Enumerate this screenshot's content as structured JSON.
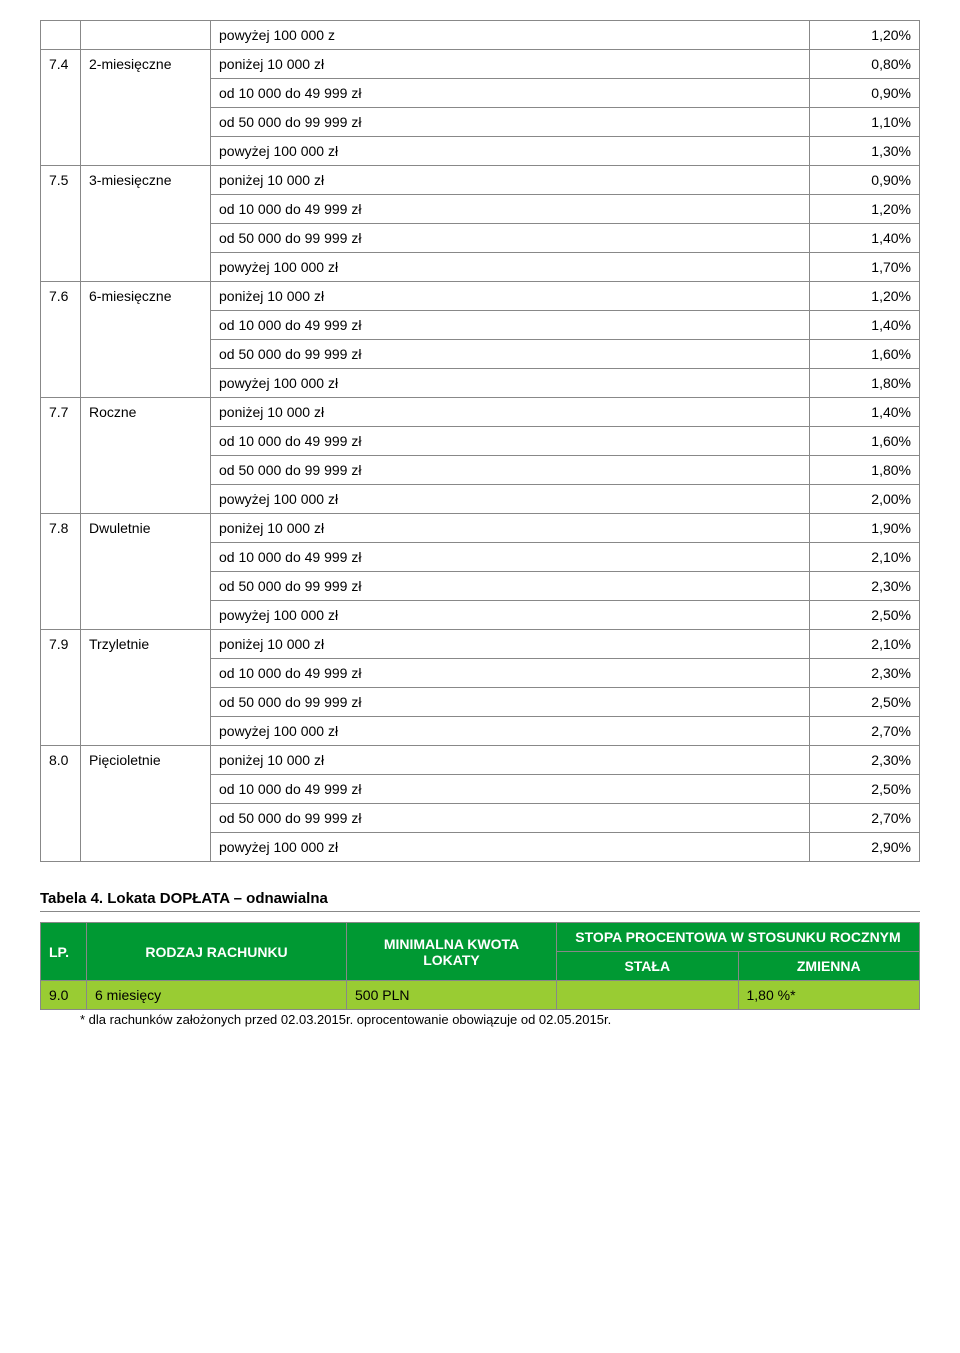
{
  "main_rows": [
    {
      "num": "",
      "label": "",
      "desc": "powyżej 100 000 z",
      "pct": "1,20%"
    },
    {
      "num": "7.4",
      "label": "2-miesięczne",
      "desc": "poniżej 10 000 zł",
      "pct": "0,80%"
    },
    {
      "num": "",
      "label": "",
      "desc": "od 10 000 do 49 999 zł",
      "pct": "0,90%"
    },
    {
      "num": "",
      "label": "",
      "desc": "od 50 000 do 99 999 zł",
      "pct": "1,10%"
    },
    {
      "num": "",
      "label": "",
      "desc": "powyżej 100 000 zł",
      "pct": "1,30%"
    },
    {
      "num": "7.5",
      "label": "3-miesięczne",
      "desc": "poniżej 10 000 zł",
      "pct": "0,90%"
    },
    {
      "num": "",
      "label": "",
      "desc": "od 10 000 do 49 999 zł",
      "pct": "1,20%"
    },
    {
      "num": "",
      "label": "",
      "desc": "od 50 000 do 99 999 zł",
      "pct": "1,40%"
    },
    {
      "num": "",
      "label": "",
      "desc": "powyżej 100 000 zł",
      "pct": "1,70%"
    },
    {
      "num": "7.6",
      "label": "6-miesięczne",
      "desc": "poniżej 10 000 zł",
      "pct": "1,20%"
    },
    {
      "num": "",
      "label": "",
      "desc": "od 10 000 do 49 999 zł",
      "pct": "1,40%"
    },
    {
      "num": "",
      "label": "",
      "desc": "od 50 000 do 99 999 zł",
      "pct": "1,60%"
    },
    {
      "num": "",
      "label": "",
      "desc": "powyżej 100 000 zł",
      "pct": "1,80%"
    },
    {
      "num": "7.7",
      "label": "Roczne",
      "desc": "poniżej 10 000 zł",
      "pct": "1,40%"
    },
    {
      "num": "",
      "label": "",
      "desc": "od 10 000 do 49 999 zł",
      "pct": "1,60%"
    },
    {
      "num": "",
      "label": "",
      "desc": "od 50 000 do 99 999 zł",
      "pct": "1,80%"
    },
    {
      "num": "",
      "label": "",
      "desc": "powyżej 100 000 zł",
      "pct": "2,00%"
    },
    {
      "num": "7.8",
      "label": "Dwuletnie",
      "desc": "poniżej 10 000 zł",
      "pct": "1,90%"
    },
    {
      "num": "",
      "label": "",
      "desc": "od 10 000 do 49 999 zł",
      "pct": "2,10%"
    },
    {
      "num": "",
      "label": "",
      "desc": "od 50 000 do 99 999 zł",
      "pct": "2,30%"
    },
    {
      "num": "",
      "label": "",
      "desc": "powyżej 100 000 zł",
      "pct": "2,50%"
    },
    {
      "num": "7.9",
      "label": "Trzyletnie",
      "desc": "poniżej 10 000 zł",
      "pct": "2,10%"
    },
    {
      "num": "",
      "label": "",
      "desc": "od 10 000 do 49 999 zł",
      "pct": "2,30%"
    },
    {
      "num": "",
      "label": "",
      "desc": "od 50 000 do 99 999 zł",
      "pct": "2,50%"
    },
    {
      "num": "",
      "label": "",
      "desc": "powyżej 100 000 zł",
      "pct": "2,70%"
    },
    {
      "num": "8.0",
      "label": "Pięcioletnie",
      "desc": "poniżej 10 000 zł",
      "pct": "2,30%"
    },
    {
      "num": "",
      "label": "",
      "desc": "od 10 000 do 49 999 zł",
      "pct": "2,50%"
    },
    {
      "num": "",
      "label": "",
      "desc": "od 50 000 do 99 999 zł",
      "pct": "2,70%"
    },
    {
      "num": "",
      "label": "",
      "desc": "powyżej 100 000 zł",
      "pct": "2,90%"
    }
  ],
  "table4_title": "Tabela 4. Lokata DOPŁATA – odnawialna",
  "green": {
    "hdr_lp": "LP.",
    "hdr_rodzaj": "RODZAJ RACHUNKU",
    "hdr_min": "MINIMALNA KWOTA LOKATY",
    "hdr_stopa": "STOPA PROCENTOWA W STOSUNKU ROCZNYM",
    "hdr_stala": "STAŁA",
    "hdr_zmienna": "ZMIENNA",
    "row_lp": "9.0",
    "row_rodzaj": "6 miesięcy",
    "row_min": "500 PLN",
    "row_stala": "",
    "row_zmienna": "1,80 %*"
  },
  "footnote": "* dla rachunków założonych przed 02.03.2015r. oprocentowanie obowiązuje od 02.05.2015r."
}
